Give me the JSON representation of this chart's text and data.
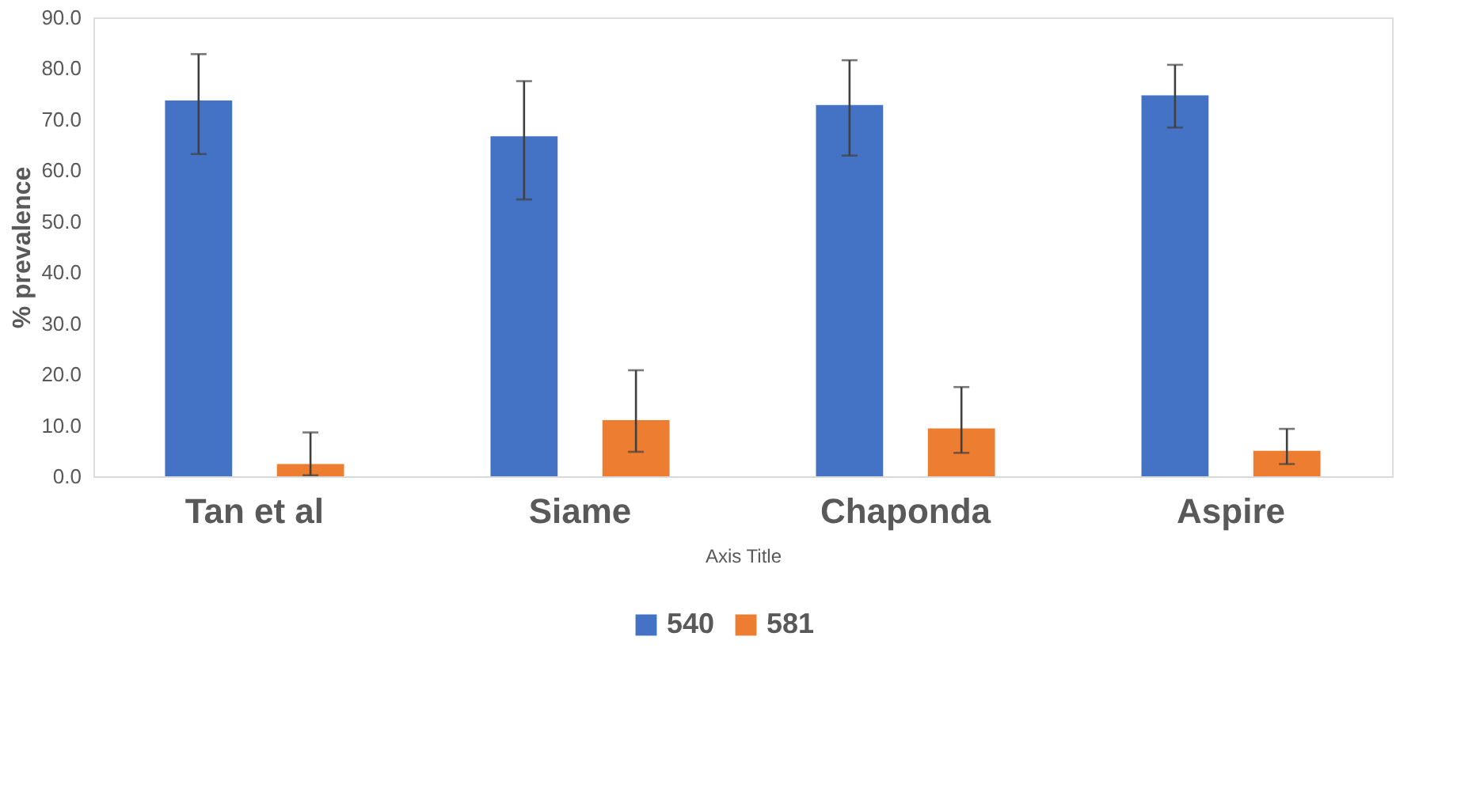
{
  "chart_data": {
    "type": "bar",
    "xlabel": "Axis Title",
    "ylabel": "% prevalence",
    "categories": [
      "Tan et al",
      "Siame",
      "Chaponda",
      "Aspire"
    ],
    "series": [
      {
        "name": "540",
        "color": "#4472c4",
        "values": [
          73.7,
          66.7,
          72.8,
          74.7
        ],
        "errors": [
          [
            63.2,
            82.8
          ],
          [
            54.3,
            77.5
          ],
          [
            62.9,
            81.6
          ],
          [
            68.4,
            80.7
          ]
        ]
      },
      {
        "name": "581",
        "color": "#ed7d31",
        "values": [
          2.4,
          11.0,
          9.4,
          5.0
        ],
        "errors": [
          [
            0.2,
            8.6
          ],
          [
            4.8,
            20.8
          ],
          [
            4.6,
            17.5
          ],
          [
            2.4,
            9.3
          ]
        ]
      }
    ],
    "ylim": [
      0,
      90
    ],
    "yticks": [
      {
        "value": 0,
        "label": "0.0"
      },
      {
        "value": 10,
        "label": "10.0"
      },
      {
        "value": 20,
        "label": "20.0"
      },
      {
        "value": 30,
        "label": "30.0"
      },
      {
        "value": 40,
        "label": "40.0"
      },
      {
        "value": 50,
        "label": "50.0"
      },
      {
        "value": 60,
        "label": "60.0"
      },
      {
        "value": 70,
        "label": "70.0"
      },
      {
        "value": 80,
        "label": "80.0"
      },
      {
        "value": 90,
        "label": "90.0"
      }
    ],
    "grid": false,
    "legend": "bottom"
  }
}
